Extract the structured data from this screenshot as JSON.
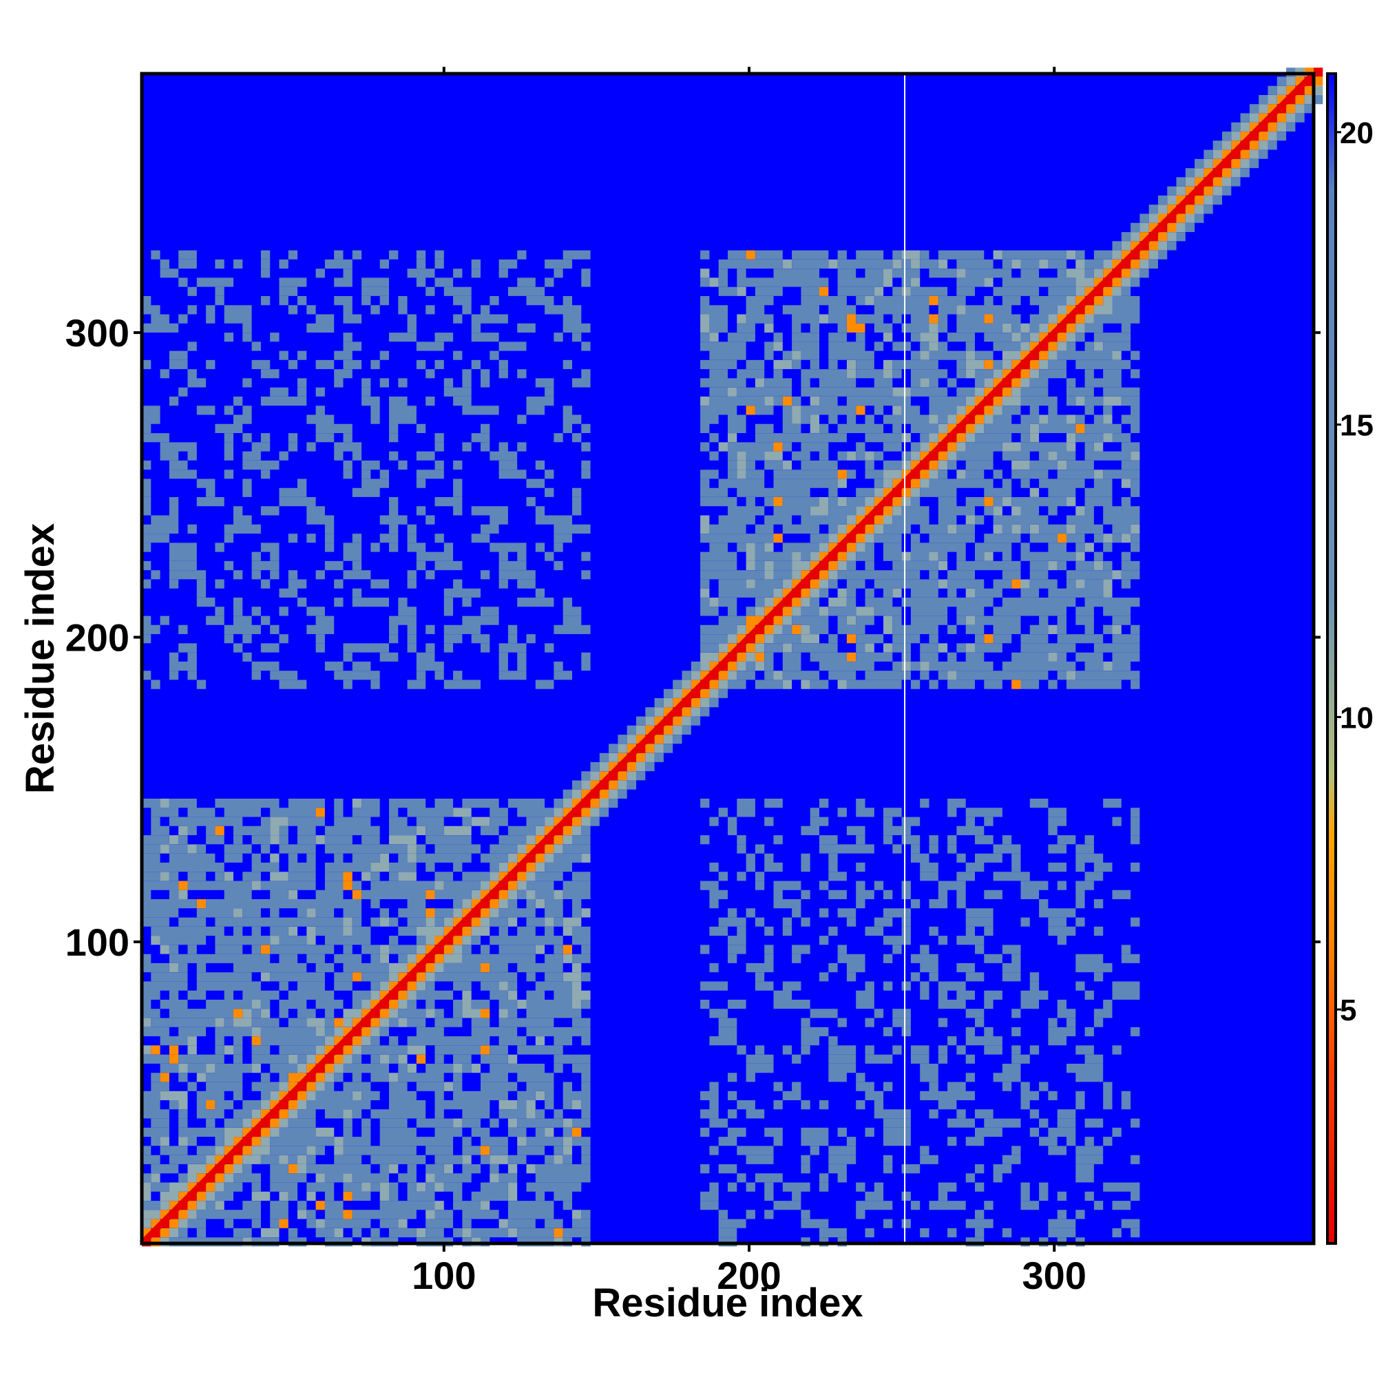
{
  "chart_data": {
    "type": "heatmap",
    "title": "",
    "xlabel": "Residue index",
    "ylabel": "Residue index",
    "n_residues": 385,
    "x_ticks": [
      100,
      200,
      300
    ],
    "y_ticks": [
      100,
      200,
      300
    ],
    "xlim": [
      1,
      385
    ],
    "ylim": [
      1,
      385
    ],
    "colorbar": {
      "ticks": [
        5,
        10,
        15,
        20
      ],
      "range": [
        1,
        21
      ],
      "stops": [
        {
          "value": 1,
          "color": "#e60000"
        },
        {
          "value": 4,
          "color": "#ff4000"
        },
        {
          "value": 6,
          "color": "#ff8000"
        },
        {
          "value": 8,
          "color": "#ffa500"
        },
        {
          "value": 9,
          "color": "#b5c07a"
        },
        {
          "value": 12,
          "color": "#6f93b5"
        },
        {
          "value": 19,
          "color": "#5a82c0"
        },
        {
          "value": 21,
          "color": "#0000ff"
        }
      ]
    },
    "background_color": "#0000ff",
    "contact_color": "#5f87b8",
    "diagonal_color": "#e60000",
    "domains": [
      {
        "name_shown": "",
        "start": 1,
        "end": 145
      },
      {
        "name_shown": "",
        "start": 182,
        "end": 325
      }
    ],
    "gap_column": 251
  }
}
